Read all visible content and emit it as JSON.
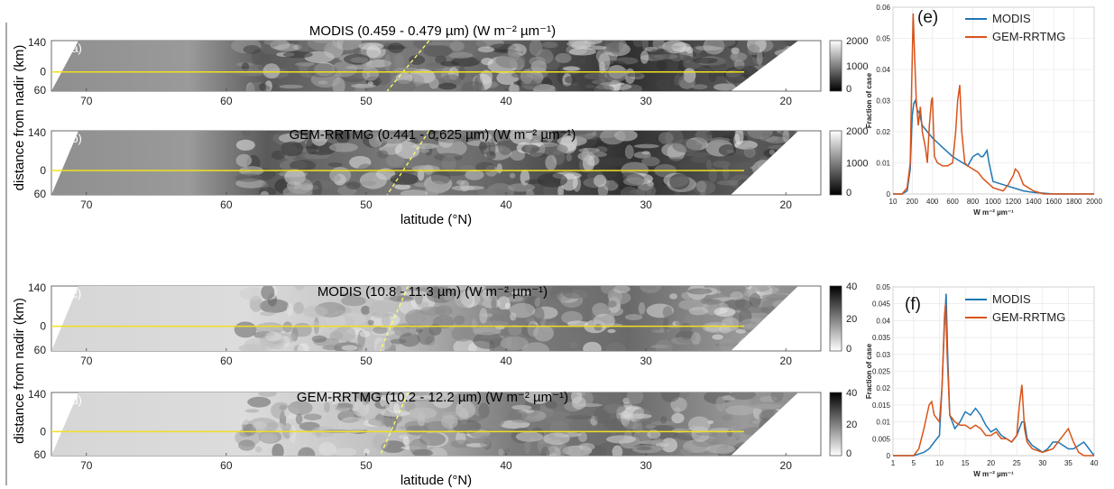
{
  "chart_data": [
    {
      "type": "heatmap",
      "panel_label": "(a)",
      "title": "MODIS (0.459 - 0.479 µm) (W m⁻² µm⁻¹)",
      "ylabel": "distance from nadir (km)",
      "xlabel": "",
      "x_ticks": [
        "70",
        "60",
        "50",
        "40",
        "30",
        "20"
      ],
      "y_ticks": [
        "140",
        "0",
        "60"
      ],
      "colorbar_ticks": [
        "2000",
        "1000",
        "0"
      ],
      "colorbar": "black-to-white",
      "style": "vis"
    },
    {
      "type": "heatmap",
      "panel_label": "(b)",
      "title": "GEM-RRTMG (0.441 - 0.625 µm) (W m⁻² µm⁻¹)",
      "ylabel": "distance from nadir (km)",
      "xlabel": "latitude (°N)",
      "x_ticks": [
        "70",
        "60",
        "50",
        "40",
        "30",
        "20"
      ],
      "y_ticks": [
        "140",
        "0",
        "60"
      ],
      "colorbar_ticks": [
        "2000",
        "1000",
        "0"
      ],
      "colorbar": "black-to-white",
      "style": "vis"
    },
    {
      "type": "heatmap",
      "panel_label": "(c)",
      "title": "MODIS (10.8 - 11.3 µm) (W m⁻² µm⁻¹)",
      "ylabel": "distance from nadir (km)",
      "xlabel": "",
      "x_ticks": [
        "70",
        "60",
        "50",
        "40",
        "30",
        "20"
      ],
      "y_ticks": [
        "140",
        "0",
        "60"
      ],
      "colorbar_ticks": [
        "40",
        "20",
        "0"
      ],
      "colorbar": "white-to-black",
      "style": "ir"
    },
    {
      "type": "heatmap",
      "panel_label": "(d)",
      "title": "GEM-RRTMG (10.2 - 12.2 µm) (W m⁻² µm⁻¹)",
      "ylabel": "distance from nadir (km)",
      "xlabel": "latitude (°N)",
      "x_ticks": [
        "70",
        "60",
        "50",
        "40",
        "30",
        "20"
      ],
      "y_ticks": [
        "140",
        "0",
        "60"
      ],
      "colorbar_ticks": [
        "40",
        "20",
        "0"
      ],
      "colorbar": "white-to-black",
      "style": "ir"
    },
    {
      "type": "line",
      "panel_label": "(e)",
      "xlabel": "W m⁻² µm⁻¹",
      "ylabel": "Fraction of case",
      "x_ticks": [
        10,
        200,
        400,
        600,
        800,
        1000,
        1200,
        1400,
        1600,
        1800,
        2000
      ],
      "y_ticks": [
        0,
        0.01,
        0.02,
        0.03,
        0.04,
        0.05,
        0.06
      ],
      "xlim": [
        10,
        2000
      ],
      "ylim": [
        0,
        0.06
      ],
      "legend": "top-right",
      "series": [
        {
          "name": "MODIS",
          "color": "#1f77b4",
          "x": [
            10,
            100,
            150,
            180,
            200,
            215,
            230,
            250,
            270,
            300,
            350,
            400,
            500,
            600,
            700,
            750,
            800,
            850,
            880,
            900,
            920,
            940,
            960,
            1000,
            1100,
            1200,
            1300,
            1400,
            1600,
            2000
          ],
          "y": [
            0,
            0,
            0.001,
            0.008,
            0.025,
            0.029,
            0.03,
            0.027,
            0.026,
            0.022,
            0.02,
            0.018,
            0.015,
            0.012,
            0.01,
            0.009,
            0.012,
            0.013,
            0.012,
            0.012,
            0.013,
            0.014,
            0.01,
            0.004,
            0.003,
            0.002,
            0.001,
            0.0005,
            0,
            0
          ]
        },
        {
          "name": "GEM-RRTMG",
          "color": "#d95319",
          "x": [
            10,
            100,
            150,
            180,
            195,
            210,
            220,
            240,
            260,
            280,
            300,
            330,
            350,
            370,
            390,
            400,
            420,
            450,
            500,
            550,
            600,
            630,
            650,
            670,
            690,
            720,
            750,
            800,
            850,
            900,
            1000,
            1100,
            1150,
            1200,
            1220,
            1250,
            1300,
            1400,
            1500,
            2000
          ],
          "y": [
            0,
            0,
            0.002,
            0.01,
            0.035,
            0.058,
            0.048,
            0.03,
            0.022,
            0.028,
            0.02,
            0.015,
            0.01,
            0.022,
            0.03,
            0.031,
            0.012,
            0.01,
            0.009,
            0.009,
            0.01,
            0.02,
            0.03,
            0.035,
            0.02,
            0.01,
            0.009,
            0.008,
            0.007,
            0.005,
            0.002,
            0.001,
            0.003,
            0.006,
            0.008,
            0.007,
            0.003,
            0.001,
            0,
            0
          ]
        }
      ]
    },
    {
      "type": "line",
      "panel_label": "(f)",
      "xlabel": "W m⁻² µm⁻¹",
      "ylabel": "Fraction of case",
      "x_ticks": [
        1,
        5,
        10,
        15,
        20,
        25,
        30,
        35,
        40
      ],
      "y_ticks": [
        0,
        0.005,
        0.01,
        0.015,
        0.02,
        0.025,
        0.03,
        0.035,
        0.04,
        0.045,
        0.05
      ],
      "xlim": [
        1,
        40
      ],
      "ylim": [
        0,
        0.05
      ],
      "legend": "top-right",
      "series": [
        {
          "name": "MODIS",
          "color": "#1f77b4",
          "x": [
            1,
            5,
            7,
            8,
            9,
            10,
            10.5,
            11,
            11.3,
            11.6,
            12,
            13,
            14,
            15,
            16,
            17,
            18,
            19,
            20,
            21,
            22,
            23,
            24,
            25,
            26,
            26.5,
            27,
            28,
            30,
            31,
            32,
            33,
            34,
            35,
            36,
            37,
            38,
            39,
            40
          ],
          "y": [
            0,
            0,
            0.001,
            0.002,
            0.004,
            0.006,
            0.02,
            0.04,
            0.048,
            0.03,
            0.012,
            0.008,
            0.01,
            0.013,
            0.012,
            0.014,
            0.012,
            0.009,
            0.007,
            0.008,
            0.006,
            0.005,
            0.004,
            0.006,
            0.01,
            0.01,
            0.005,
            0.003,
            0.001,
            0.002,
            0.004,
            0.004,
            0.003,
            0.002,
            0.002,
            0.003,
            0.004,
            0.002,
            0
          ]
        },
        {
          "name": "GEM-RRTMG",
          "color": "#d95319",
          "x": [
            1,
            5,
            6,
            7,
            8,
            8.5,
            9,
            10,
            10.5,
            11,
            11.2,
            11.5,
            12,
            13,
            14,
            15,
            16,
            17,
            18,
            19,
            20,
            21,
            22,
            23,
            24,
            25,
            25.5,
            26,
            26.5,
            27,
            28,
            30,
            32,
            33,
            34,
            35,
            36,
            37,
            38,
            40
          ],
          "y": [
            0,
            0,
            0.002,
            0.008,
            0.015,
            0.016,
            0.012,
            0.01,
            0.02,
            0.042,
            0.045,
            0.03,
            0.012,
            0.01,
            0.009,
            0.009,
            0.008,
            0.009,
            0.008,
            0.006,
            0.006,
            0.007,
            0.005,
            0.005,
            0.004,
            0.006,
            0.015,
            0.021,
            0.008,
            0.004,
            0.002,
            0.001,
            0.002,
            0.004,
            0.006,
            0.008,
            0.004,
            0.001,
            0,
            0
          ]
        }
      ]
    }
  ]
}
